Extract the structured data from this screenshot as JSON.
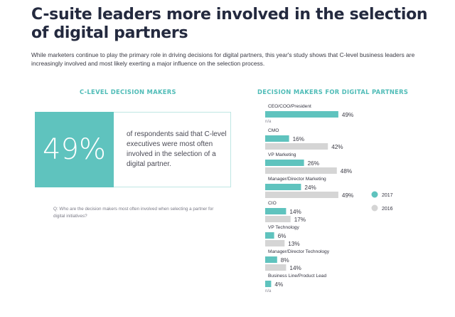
{
  "header": {
    "title": "C-suite leaders more involved in the selection of digital partners",
    "intro": "While marketers continue to play the primary role in driving decisions for digital partners, this year's study shows that C-level business leaders are increasingly involved and most likely exerting a major influence on the selection process."
  },
  "left_panel": {
    "heading": "C-LEVEL DECISION MAKERS",
    "stat_value": "49%",
    "stat_text": "of respondents said that C-level executives were most often involved in the selection of a digital partner.",
    "question": "Q: Who are the decision makers most often involved when selecting a partner for digital initiatives?"
  },
  "colors": {
    "series_2017": "#5fc3be",
    "series_2016": "#d5d5d5",
    "accent": "#4fbcb7"
  },
  "chart_data": {
    "type": "bar",
    "orientation": "horizontal",
    "title": "DECISION MAKERS FOR DIGITAL PARTNERS",
    "categories": [
      "CEO/COO/President",
      "CMO",
      "VP Marketing",
      "Manager/Director Marketing",
      "CIO",
      "VP Technology",
      "Manager/Director Technology",
      "Business Line/Product Lead"
    ],
    "series": [
      {
        "name": "2017",
        "values": [
          49,
          16,
          26,
          24,
          14,
          6,
          8,
          4
        ],
        "labels": [
          "49%",
          "16%",
          "26%",
          "24%",
          "14%",
          "6%",
          "8%",
          "4%"
        ]
      },
      {
        "name": "2016",
        "values": [
          null,
          42,
          48,
          49,
          17,
          13,
          14,
          null
        ],
        "labels": [
          "n/a",
          "42%",
          "48%",
          "49%",
          "17%",
          "13%",
          "14%",
          "n/a"
        ]
      }
    ],
    "legend_position": "right",
    "grid": false
  }
}
